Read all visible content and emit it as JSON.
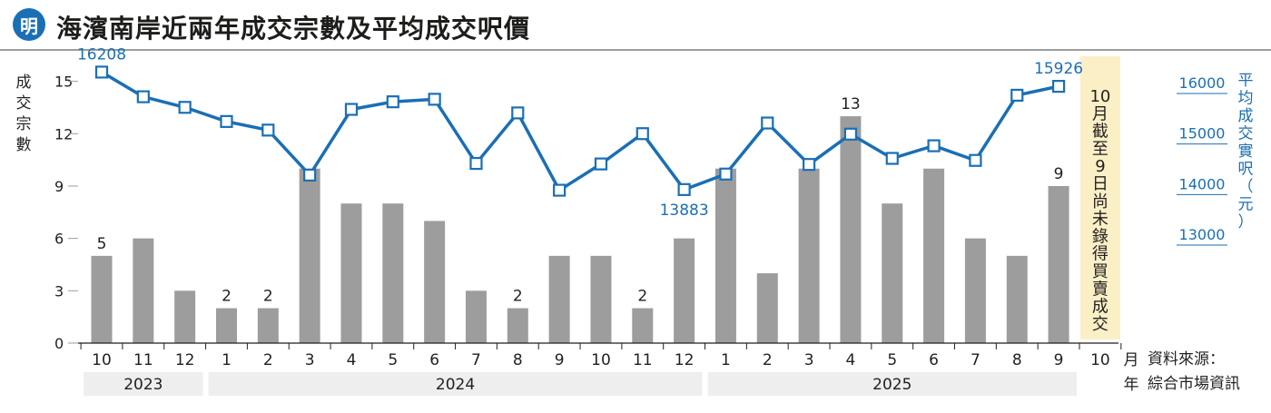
{
  "header": {
    "logo_char": "明",
    "title": "海濱南岸近兩年成交宗數及平均成交呎價"
  },
  "axis_labels": {
    "y_left_chars": [
      "成",
      "交",
      "宗",
      "數"
    ],
    "y_right_chars": [
      "平",
      "均",
      "成",
      "交",
      "實",
      "呎",
      "（",
      "元",
      "）"
    ],
    "month_unit": "月",
    "year_unit": "年"
  },
  "note_chars": [
    "10",
    "月",
    "截",
    "至",
    "9",
    "日",
    "尚",
    "未",
    "錄",
    "得",
    "買",
    "賣",
    "成",
    "交"
  ],
  "source": {
    "line1": "資料來源：",
    "line2": "綜合市場資訊"
  },
  "colors": {
    "line": "#1a6fb5",
    "bar": "#9d9d9d",
    "note_band": "#fbefc6",
    "year_band": "#eeeeee"
  },
  "chart_data": {
    "type": "bar+line",
    "categories": [
      "10",
      "11",
      "12",
      "1",
      "2",
      "3",
      "4",
      "5",
      "6",
      "7",
      "8",
      "9",
      "10",
      "11",
      "12",
      "1",
      "2",
      "3",
      "4",
      "5",
      "6",
      "7",
      "8",
      "9",
      "10"
    ],
    "years": [
      {
        "label": "2023",
        "from": 0,
        "to": 2
      },
      {
        "label": "2024",
        "from": 3,
        "to": 14
      },
      {
        "label": "2025",
        "from": 15,
        "to": 24
      }
    ],
    "series": [
      {
        "name": "成交宗數",
        "axis": "left",
        "type": "bar",
        "values": [
          5,
          6,
          3,
          2,
          2,
          10,
          8,
          8,
          7,
          3,
          2,
          5,
          5,
          2,
          6,
          10,
          4,
          10,
          13,
          8,
          10,
          6,
          5,
          9,
          null
        ],
        "labels": {
          "0": "5",
          "3": "2",
          "4": "2",
          "10": "2",
          "13": "2",
          "18": "13",
          "23": "9"
        }
      },
      {
        "name": "平均成交實呎（元）",
        "axis": "right",
        "type": "line",
        "values": [
          16208,
          15720,
          15510,
          15230,
          15060,
          14170,
          15470,
          15620,
          15670,
          14400,
          15400,
          13870,
          14390,
          14990,
          13883,
          14190,
          15200,
          14380,
          14980,
          14500,
          14750,
          14460,
          15750,
          15926,
          null
        ],
        "labels": {
          "0": "16208",
          "14": "13883",
          "23": "15926"
        }
      }
    ],
    "y_left": {
      "ticks": [
        0,
        3,
        6,
        9,
        12,
        15
      ],
      "range": [
        0,
        15.5
      ]
    },
    "y_right": {
      "ticks": [
        13000,
        14000,
        15000,
        16000
      ]
    },
    "annotation_index": 24
  }
}
